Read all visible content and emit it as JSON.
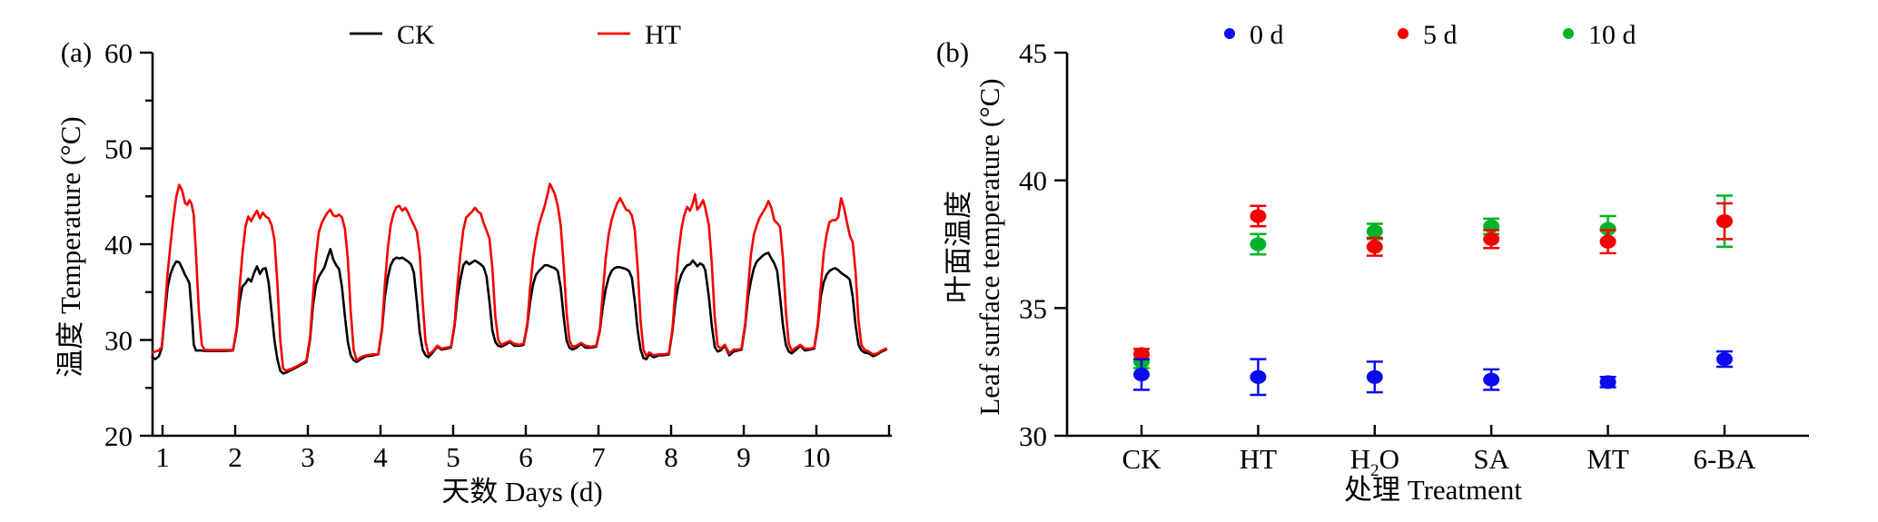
{
  "figure": {
    "background": "#ffffff",
    "panel_a": {
      "tag": "(a)",
      "y_axis": {
        "label": "温度 Temperature (°C)",
        "min": 20,
        "max": 60,
        "major_ticks": [
          20,
          30,
          40,
          50,
          60
        ],
        "minor_ticks": [
          25,
          35,
          45,
          55
        ]
      },
      "x_axis": {
        "label": "天数 Days (d)",
        "ticks": [
          1,
          2,
          3,
          4,
          5,
          6,
          7,
          8,
          9,
          10
        ]
      },
      "legend": [
        {
          "label": "CK",
          "color": "#000000"
        },
        {
          "label": "HT",
          "color": "#f50000"
        }
      ]
    },
    "panel_b": {
      "tag": "(b)",
      "y_axis": {
        "label_line1": "叶面温度",
        "label_line2": "Leaf surface temperature (°C)",
        "min": 30,
        "max": 45,
        "major_ticks": [
          30,
          35,
          40,
          45
        ]
      },
      "x_axis": {
        "label": "处理 Treatment"
      },
      "legend": [
        {
          "label": "0 d",
          "color": "#0b0bef"
        },
        {
          "label": "5 d",
          "color": "#f50000"
        },
        {
          "label": "10 d",
          "color": "#00b426"
        }
      ]
    }
  },
  "chart_data": [
    {
      "type": "line",
      "title": "",
      "xlabel": "天数 Days (d)",
      "ylabel": "温度 Temperature (°C)",
      "xlim": [
        0.85,
        11.0
      ],
      "ylim": [
        20,
        60
      ],
      "x_ticks": [
        1,
        2,
        3,
        4,
        5,
        6,
        7,
        8,
        9,
        10
      ],
      "y_major_ticks": [
        20,
        30,
        40,
        50,
        60
      ],
      "y_minor_ticks": [
        25,
        35,
        45,
        55
      ],
      "grid": false,
      "legend_position": "top",
      "series_names": [
        "CK",
        "HT"
      ],
      "colors": {
        "CK": "#000000",
        "HT": "#f50000"
      },
      "points_format": [
        "day",
        "CK_temp_C",
        "HT_temp_C"
      ],
      "points": [
        [
          0.86,
          28.2,
          28.7
        ],
        [
          0.9,
          28.0,
          28.8
        ],
        [
          0.95,
          28.3,
          28.9
        ],
        [
          0.99,
          29.2,
          29.3
        ],
        [
          1.03,
          32.5,
          33.0
        ],
        [
          1.07,
          35.5,
          37.0
        ],
        [
          1.11,
          36.9,
          40.0
        ],
        [
          1.15,
          37.7,
          42.8
        ],
        [
          1.19,
          38.2,
          45.0
        ],
        [
          1.23,
          38.1,
          46.2
        ],
        [
          1.27,
          37.5,
          45.6
        ],
        [
          1.31,
          36.8,
          44.3
        ],
        [
          1.34,
          36.4,
          44.1
        ],
        [
          1.37,
          35.9,
          44.6
        ],
        [
          1.4,
          33.0,
          44.2
        ],
        [
          1.43,
          29.5,
          43.0
        ],
        [
          1.46,
          28.9,
          39.0
        ],
        [
          1.5,
          28.9,
          33.0
        ],
        [
          1.54,
          28.9,
          29.5
        ],
        [
          1.58,
          28.85,
          28.95
        ],
        [
          1.7,
          28.85,
          28.95
        ],
        [
          1.85,
          28.85,
          28.95
        ],
        [
          1.97,
          28.9,
          28.95
        ],
        [
          2.02,
          31.0,
          31.2
        ],
        [
          2.06,
          34.0,
          35.5
        ],
        [
          2.1,
          35.6,
          39.0
        ],
        [
          2.14,
          35.9,
          41.8
        ],
        [
          2.18,
          36.4,
          42.9
        ],
        [
          2.22,
          36.1,
          42.4
        ],
        [
          2.26,
          37.0,
          43.0
        ],
        [
          2.3,
          37.7,
          43.5
        ],
        [
          2.34,
          36.9,
          42.7
        ],
        [
          2.38,
          37.4,
          43.3
        ],
        [
          2.42,
          37.5,
          42.9
        ],
        [
          2.46,
          36.0,
          42.7
        ],
        [
          2.5,
          33.0,
          42.0
        ],
        [
          2.54,
          30.0,
          40.5
        ],
        [
          2.58,
          28.0,
          36.0
        ],
        [
          2.62,
          26.8,
          30.0
        ],
        [
          2.66,
          26.5,
          27.0
        ],
        [
          2.7,
          26.6,
          26.8
        ],
        [
          2.78,
          26.9,
          27.0
        ],
        [
          2.86,
          27.2,
          27.3
        ],
        [
          2.93,
          27.5,
          27.6
        ],
        [
          2.98,
          27.7,
          27.8
        ],
        [
          3.03,
          30.0,
          30.3
        ],
        [
          3.07,
          33.5,
          34.5
        ],
        [
          3.11,
          35.7,
          38.5
        ],
        [
          3.15,
          36.6,
          41.2
        ],
        [
          3.19,
          37.1,
          42.2
        ],
        [
          3.23,
          37.6,
          42.8
        ],
        [
          3.27,
          38.6,
          43.3
        ],
        [
          3.31,
          39.5,
          43.6
        ],
        [
          3.35,
          38.4,
          43.0
        ],
        [
          3.39,
          37.8,
          42.9
        ],
        [
          3.43,
          37.4,
          43.1
        ],
        [
          3.47,
          35.5,
          42.8
        ],
        [
          3.51,
          32.5,
          41.6
        ],
        [
          3.55,
          29.8,
          38.5
        ],
        [
          3.59,
          28.4,
          33.0
        ],
        [
          3.63,
          27.9,
          29.0
        ],
        [
          3.67,
          27.7,
          27.9
        ],
        [
          3.73,
          28.0,
          28.2
        ],
        [
          3.8,
          28.3,
          28.4
        ],
        [
          3.9,
          28.4,
          28.5
        ],
        [
          3.97,
          28.5,
          28.5
        ],
        [
          4.02,
          31.0,
          31.2
        ],
        [
          4.06,
          34.5,
          35.8
        ],
        [
          4.1,
          36.5,
          39.5
        ],
        [
          4.14,
          37.8,
          42.0
        ],
        [
          4.18,
          38.4,
          43.2
        ],
        [
          4.22,
          38.6,
          43.9
        ],
        [
          4.26,
          38.5,
          44.0
        ],
        [
          4.3,
          38.6,
          43.5
        ],
        [
          4.34,
          38.4,
          43.8
        ],
        [
          4.38,
          38.2,
          43.3
        ],
        [
          4.42,
          37.9,
          42.6
        ],
        [
          4.46,
          37.0,
          42.0
        ],
        [
          4.5,
          34.0,
          41.3
        ],
        [
          4.54,
          30.8,
          39.0
        ],
        [
          4.58,
          29.0,
          34.0
        ],
        [
          4.62,
          28.4,
          29.8
        ],
        [
          4.66,
          28.2,
          28.5
        ],
        [
          4.72,
          28.7,
          28.8
        ],
        [
          4.78,
          29.3,
          29.4
        ],
        [
          4.84,
          29.0,
          29.1
        ],
        [
          4.91,
          29.1,
          29.2
        ],
        [
          4.97,
          29.2,
          29.3
        ],
        [
          5.02,
          31.5,
          31.7
        ],
        [
          5.06,
          34.5,
          35.8
        ],
        [
          5.1,
          36.3,
          39.0
        ],
        [
          5.14,
          37.8,
          41.5
        ],
        [
          5.18,
          38.2,
          42.8
        ],
        [
          5.22,
          37.9,
          43.1
        ],
        [
          5.26,
          38.1,
          43.4
        ],
        [
          5.3,
          38.3,
          43.8
        ],
        [
          5.34,
          38.1,
          43.4
        ],
        [
          5.38,
          37.9,
          43.2
        ],
        [
          5.42,
          37.6,
          42.2
        ],
        [
          5.46,
          36.6,
          41.4
        ],
        [
          5.5,
          34.0,
          40.6
        ],
        [
          5.54,
          31.0,
          37.5
        ],
        [
          5.58,
          29.8,
          32.5
        ],
        [
          5.62,
          29.4,
          30.0
        ],
        [
          5.66,
          29.3,
          29.5
        ],
        [
          5.72,
          29.5,
          29.7
        ],
        [
          5.78,
          29.8,
          29.9
        ],
        [
          5.84,
          29.4,
          29.6
        ],
        [
          5.91,
          29.4,
          29.5
        ],
        [
          5.97,
          29.5,
          29.6
        ],
        [
          6.02,
          31.5,
          31.7
        ],
        [
          6.06,
          34.0,
          35.5
        ],
        [
          6.1,
          35.8,
          38.5
        ],
        [
          6.14,
          36.8,
          40.5
        ],
        [
          6.18,
          37.2,
          42.0
        ],
        [
          6.22,
          37.5,
          43.0
        ],
        [
          6.26,
          37.8,
          44.0
        ],
        [
          6.3,
          37.8,
          45.2
        ],
        [
          6.33,
          37.7,
          46.3
        ],
        [
          6.36,
          37.6,
          45.9
        ],
        [
          6.4,
          37.5,
          45.2
        ],
        [
          6.44,
          37.2,
          44.0
        ],
        [
          6.48,
          35.5,
          42.0
        ],
        [
          6.52,
          32.5,
          38.0
        ],
        [
          6.56,
          30.0,
          33.0
        ],
        [
          6.6,
          29.2,
          30.0
        ],
        [
          6.64,
          29.0,
          29.3
        ],
        [
          6.7,
          29.2,
          29.4
        ],
        [
          6.76,
          29.6,
          29.7
        ],
        [
          6.82,
          29.2,
          29.4
        ],
        [
          6.9,
          29.2,
          29.3
        ],
        [
          6.97,
          29.3,
          29.4
        ],
        [
          7.02,
          31.0,
          31.2
        ],
        [
          7.06,
          33.5,
          35.0
        ],
        [
          7.1,
          35.3,
          38.5
        ],
        [
          7.14,
          36.5,
          41.0
        ],
        [
          7.18,
          37.2,
          42.5
        ],
        [
          7.22,
          37.5,
          43.5
        ],
        [
          7.26,
          37.6,
          44.3
        ],
        [
          7.3,
          37.6,
          44.8
        ],
        [
          7.34,
          37.5,
          44.2
        ],
        [
          7.38,
          37.4,
          43.6
        ],
        [
          7.42,
          37.2,
          43.5
        ],
        [
          7.46,
          36.5,
          43.0
        ],
        [
          7.5,
          34.0,
          41.5
        ],
        [
          7.54,
          31.0,
          37.5
        ],
        [
          7.58,
          29.0,
          32.0
        ],
        [
          7.62,
          28.1,
          29.0
        ],
        [
          7.66,
          28.0,
          28.3
        ],
        [
          7.7,
          28.5,
          28.7
        ],
        [
          7.76,
          28.2,
          28.4
        ],
        [
          7.83,
          28.4,
          28.5
        ],
        [
          7.9,
          28.4,
          28.5
        ],
        [
          7.97,
          28.5,
          28.6
        ],
        [
          8.02,
          31.0,
          31.2
        ],
        [
          8.06,
          34.0,
          35.5
        ],
        [
          8.1,
          35.8,
          39.0
        ],
        [
          8.14,
          36.8,
          41.5
        ],
        [
          8.18,
          37.4,
          43.0
        ],
        [
          8.22,
          37.8,
          43.9
        ],
        [
          8.26,
          37.9,
          43.5
        ],
        [
          8.3,
          38.3,
          44.3
        ],
        [
          8.33,
          38.0,
          45.2
        ],
        [
          8.36,
          37.7,
          43.6
        ],
        [
          8.4,
          38.0,
          44.0
        ],
        [
          8.44,
          37.8,
          44.6
        ],
        [
          8.47,
          37.3,
          43.8
        ],
        [
          8.52,
          34.5,
          42.0
        ],
        [
          8.56,
          31.5,
          38.0
        ],
        [
          8.6,
          29.3,
          32.5
        ],
        [
          8.64,
          28.8,
          29.4
        ],
        [
          8.68,
          28.9,
          29.1
        ],
        [
          8.74,
          29.4,
          29.5
        ],
        [
          8.8,
          28.4,
          28.6
        ],
        [
          8.86,
          28.8,
          29.0
        ],
        [
          8.92,
          28.9,
          29.0
        ],
        [
          8.97,
          29.0,
          29.1
        ],
        [
          9.02,
          31.5,
          31.7
        ],
        [
          9.06,
          34.5,
          35.5
        ],
        [
          9.1,
          36.2,
          39.0
        ],
        [
          9.14,
          37.5,
          41.0
        ],
        [
          9.18,
          38.2,
          42.0
        ],
        [
          9.22,
          38.5,
          42.8
        ],
        [
          9.26,
          38.8,
          43.3
        ],
        [
          9.3,
          39.0,
          43.8
        ],
        [
          9.34,
          39.1,
          44.5
        ],
        [
          9.38,
          38.5,
          43.8
        ],
        [
          9.42,
          38.0,
          42.5
        ],
        [
          9.46,
          37.2,
          42.2
        ],
        [
          9.5,
          34.5,
          41.8
        ],
        [
          9.54,
          31.5,
          38.5
        ],
        [
          9.58,
          29.5,
          33.0
        ],
        [
          9.62,
          28.8,
          29.6
        ],
        [
          9.66,
          28.6,
          28.9
        ],
        [
          9.72,
          29.0,
          29.2
        ],
        [
          9.78,
          29.4,
          29.5
        ],
        [
          9.84,
          28.9,
          29.1
        ],
        [
          9.91,
          29.0,
          29.1
        ],
        [
          9.97,
          29.1,
          29.2
        ],
        [
          10.02,
          31.5,
          31.7
        ],
        [
          10.06,
          34.5,
          35.5
        ],
        [
          10.1,
          36.0,
          39.0
        ],
        [
          10.14,
          36.8,
          41.0
        ],
        [
          10.18,
          37.2,
          42.3
        ],
        [
          10.22,
          37.4,
          42.5
        ],
        [
          10.26,
          37.5,
          42.5
        ],
        [
          10.3,
          37.3,
          42.8
        ],
        [
          10.34,
          37.0,
          44.8
        ],
        [
          10.38,
          36.8,
          43.8
        ],
        [
          10.42,
          36.6,
          42.3
        ],
        [
          10.46,
          36.3,
          40.9
        ],
        [
          10.5,
          34.5,
          40.2
        ],
        [
          10.54,
          31.5,
          37.0
        ],
        [
          10.58,
          29.5,
          32.0
        ],
        [
          10.62,
          28.9,
          29.5
        ],
        [
          10.66,
          28.7,
          29.0
        ],
        [
          10.72,
          28.6,
          28.8
        ],
        [
          10.78,
          28.3,
          28.5
        ],
        [
          10.84,
          28.5,
          28.6
        ],
        [
          10.9,
          28.8,
          28.9
        ],
        [
          10.96,
          29.0,
          29.1
        ]
      ]
    },
    {
      "type": "scatter",
      "title": "",
      "xlabel": "处理 Treatment",
      "ylabel": "叶面温度 Leaf surface temperature (°C)",
      "ylim": [
        30,
        45
      ],
      "y_ticks": [
        30,
        35,
        40,
        45
      ],
      "grid": false,
      "legend_position": "top",
      "categories": [
        "CK",
        "HT",
        "H2O",
        "SA",
        "MT",
        "6-BA"
      ],
      "series": [
        {
          "name": "0 d",
          "color": "#0b0bef",
          "values": [
            32.4,
            32.3,
            32.3,
            32.2,
            32.1,
            33.0
          ],
          "errors": [
            0.6,
            0.7,
            0.6,
            0.4,
            0.2,
            0.3
          ]
        },
        {
          "name": "5 d",
          "color": "#f50000",
          "values": [
            33.2,
            38.6,
            37.4,
            37.7,
            37.6,
            38.4
          ],
          "errors": [
            0.2,
            0.4,
            0.35,
            0.35,
            0.45,
            0.7
          ]
        },
        {
          "name": "10 d",
          "color": "#00b426",
          "values": [
            32.9,
            37.5,
            38.0,
            38.2,
            38.1,
            38.4
          ],
          "errors": [
            0.25,
            0.4,
            0.3,
            0.3,
            0.5,
            1.0
          ]
        }
      ]
    }
  ]
}
